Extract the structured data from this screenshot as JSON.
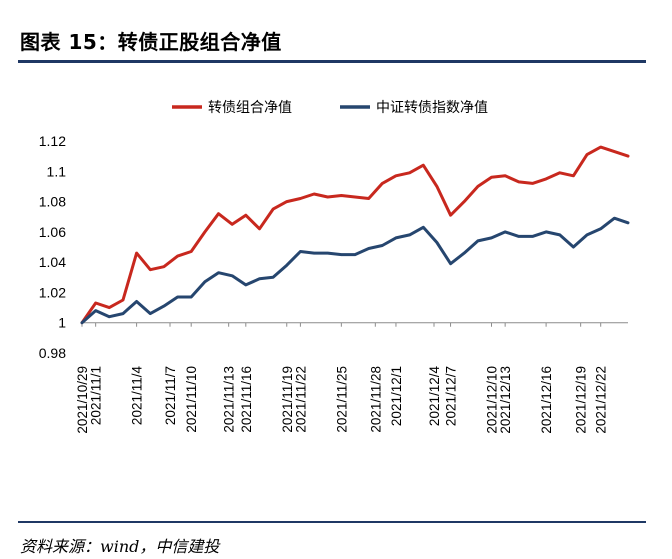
{
  "header": {
    "title": "图表 15：转债正股组合净值"
  },
  "footer": {
    "source": "资料来源：wind，中信建投"
  },
  "colors": {
    "accent_rule": "#1f3864",
    "series_portfolio": "#c8281e",
    "series_index": "#26466f"
  },
  "chart_data": {
    "type": "line",
    "title": "",
    "xlabel": "",
    "ylabel": "",
    "ylim": [
      0.98,
      1.12
    ],
    "yticks": [
      "0.98",
      "1",
      "1.02",
      "1.04",
      "1.06",
      "1.08",
      "1.1",
      "1.12"
    ],
    "grid": false,
    "legend_position": "top-center",
    "x": [
      "2021/10/29",
      "2021/11/1",
      "2021/11/2",
      "2021/11/3",
      "2021/11/4",
      "2021/11/5",
      "2021/11/8",
      "2021/11/9",
      "2021/11/10",
      "2021/11/11",
      "2021/11/12",
      "2021/11/15",
      "2021/11/16",
      "2021/11/17",
      "2021/11/18",
      "2021/11/19",
      "2021/11/22",
      "2021/11/23",
      "2021/11/24",
      "2021/11/25",
      "2021/11/26",
      "2021/11/29",
      "2021/11/30",
      "2021/12/1",
      "2021/12/2",
      "2021/12/3",
      "2021/12/6",
      "2021/12/7",
      "2021/12/8",
      "2021/12/9",
      "2021/12/10",
      "2021/12/13",
      "2021/12/14",
      "2021/12/15",
      "2021/12/16",
      "2021/12/17",
      "2021/12/20",
      "2021/12/21",
      "2021/12/22",
      "2021/12/23",
      "2021/12/24"
    ],
    "xtick_labels": [
      "2021/10/29",
      "2021/11/1",
      "2021/11/4",
      "2021/11/7",
      "2021/11/10",
      "2021/11/13",
      "2021/11/16",
      "2021/11/19",
      "2021/11/22",
      "2021/11/25",
      "2021/11/28",
      "2021/12/1",
      "2021/12/4",
      "2021/12/7",
      "2021/12/10",
      "2021/12/13",
      "2021/12/16",
      "2021/12/19",
      "2021/12/22"
    ],
    "series": [
      {
        "name": "转债组合净值",
        "values": [
          1.0,
          1.013,
          1.01,
          1.015,
          1.046,
          1.035,
          1.037,
          1.044,
          1.047,
          1.06,
          1.072,
          1.065,
          1.071,
          1.062,
          1.075,
          1.08,
          1.082,
          1.085,
          1.083,
          1.084,
          1.083,
          1.082,
          1.092,
          1.097,
          1.099,
          1.104,
          1.09,
          1.071,
          1.08,
          1.09,
          1.096,
          1.097,
          1.093,
          1.092,
          1.095,
          1.099,
          1.097,
          1.111,
          1.116,
          1.113,
          1.11
        ]
      },
      {
        "name": "中证转债指数净值",
        "values": [
          1.0,
          1.008,
          1.004,
          1.006,
          1.014,
          1.006,
          1.011,
          1.017,
          1.017,
          1.027,
          1.033,
          1.031,
          1.025,
          1.029,
          1.03,
          1.038,
          1.047,
          1.046,
          1.046,
          1.045,
          1.045,
          1.049,
          1.051,
          1.056,
          1.058,
          1.063,
          1.053,
          1.039,
          1.046,
          1.054,
          1.056,
          1.06,
          1.057,
          1.057,
          1.06,
          1.058,
          1.05,
          1.058,
          1.062,
          1.069,
          1.066
        ]
      }
    ]
  }
}
